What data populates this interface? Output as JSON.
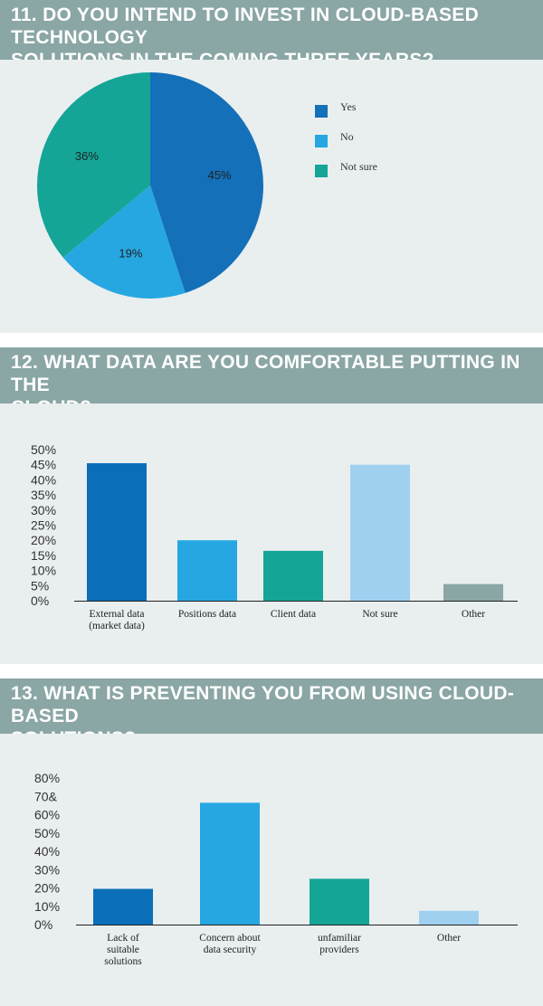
{
  "sections": [
    {
      "title_line1": "11. DO YOU INTEND TO INVEST IN CLOUD-BASED TECHNOLOGY",
      "title_line2": "SOLUTIONS IN THE COMING THREE YEARS?"
    },
    {
      "title_line1": "12. WHAT DATA ARE YOU COMFORTABLE PUTTING IN THE",
      "title_line2": "CLOUD?"
    },
    {
      "title_line1": "13. WHAT IS PREVENTING YOU FROM USING CLOUD-BASED",
      "title_line2": "SOLUTIONS?"
    }
  ],
  "chart_data": [
    {
      "type": "pie",
      "categories": [
        "Yes",
        "No",
        "Not sure"
      ],
      "values": [
        45,
        19,
        36
      ],
      "labels": [
        "45%",
        "19%",
        "36%"
      ],
      "colors": [
        "#1470b8",
        "#26a7e1",
        "#14a597"
      ],
      "legend": "right"
    },
    {
      "type": "bar",
      "categories": [
        [
          "External data",
          "(market data)"
        ],
        [
          "Positions data"
        ],
        [
          "Client data"
        ],
        [
          "Not sure"
        ],
        [
          "Other"
        ]
      ],
      "values": [
        45.5,
        20,
        16.5,
        45,
        5.5
      ],
      "colors": [
        "#0a6fb8",
        "#26a7e1",
        "#14a597",
        "#9fd0f0",
        "#8aa6a5"
      ],
      "yticks": [
        "50%",
        "45%",
        "40%",
        "35%",
        "30%",
        "25%",
        "20%",
        "15%",
        "10%",
        "5%",
        "0%"
      ],
      "ylim": [
        0,
        50
      ]
    },
    {
      "type": "bar",
      "categories": [
        [
          "Lack of",
          "suitable",
          "solutions"
        ],
        [
          "Concern about",
          "data security"
        ],
        [
          "unfamiliar",
          "providers"
        ],
        [
          "Other"
        ]
      ],
      "values": [
        19.5,
        66.5,
        25,
        7.5
      ],
      "colors": [
        "#0a6fb8",
        "#26a7e1",
        "#14a597",
        "#9fd0f0"
      ],
      "yticks": [
        "80%",
        "70&",
        "60%",
        "50%",
        "40%",
        "30%",
        "20%",
        "10%",
        "0%"
      ],
      "ylim": [
        0,
        80
      ]
    }
  ]
}
